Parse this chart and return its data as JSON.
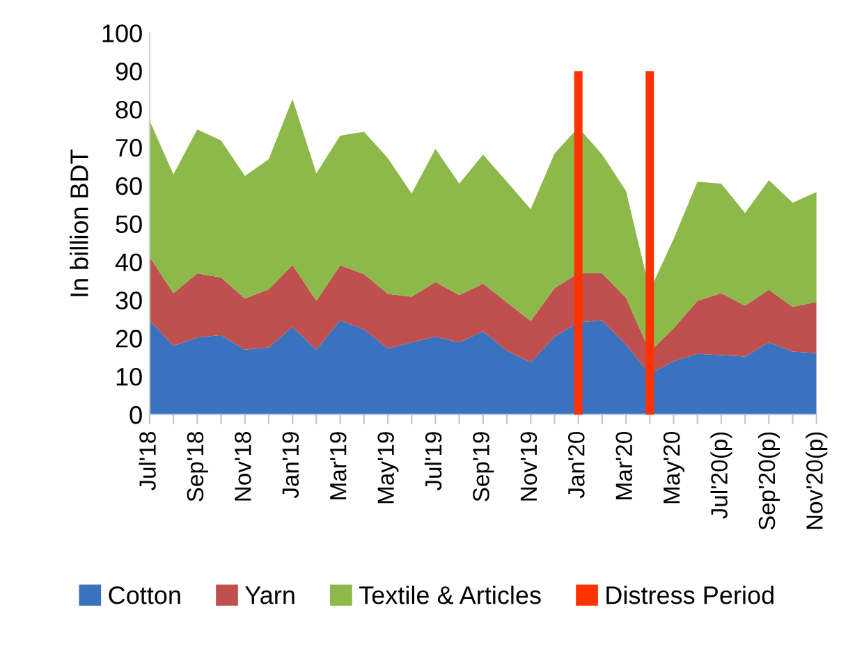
{
  "chart_data": [
    {
      "type": "area",
      "stacked": true,
      "ylabel": "In billion BDT",
      "categories": [
        "Jul'18",
        null,
        "Sep'18",
        null,
        "Nov'18",
        null,
        "Jan'19",
        null,
        "Mar'19",
        null,
        "May'19",
        null,
        "Jul'19",
        null,
        "Sep'19",
        null,
        "Nov'19",
        null,
        "Jan'20",
        null,
        "Mar'20",
        null,
        "May'20",
        null,
        "Jul'20(p)",
        null,
        "Sep'20(p)",
        null,
        "Nov'20(p)"
      ],
      "series": [
        {
          "name": "Cotton",
          "color": "#3a72bf",
          "values": [
            24.7,
            18.0,
            20.2,
            20.8,
            17.0,
            17.6,
            23.0,
            17.0,
            24.7,
            22.3,
            17.3,
            18.9,
            20.4,
            18.9,
            21.8,
            16.7,
            13.7,
            20.4,
            24.1,
            24.7,
            18.3,
            10.6,
            14.0,
            15.9,
            15.6,
            15.2,
            18.9,
            16.5,
            16.1
          ]
        },
        {
          "name": "Yarn",
          "color": "#c0504d",
          "values": [
            16.6,
            13.8,
            16.8,
            15.1,
            13.4,
            15.2,
            16.2,
            12.8,
            14.4,
            14.5,
            14.3,
            12.0,
            14.3,
            12.4,
            12.5,
            12.7,
            10.8,
            12.7,
            12.9,
            12.3,
            12.3,
            5.9,
            8.6,
            13.9,
            16.2,
            13.3,
            13.8,
            11.7,
            13.4
          ]
        },
        {
          "name": "Textile & Articles",
          "color": "#8db84a",
          "values": [
            35.7,
            31.1,
            37.7,
            35.9,
            32.1,
            34.1,
            43.5,
            33.4,
            34.0,
            37.3,
            35.6,
            27.0,
            34.9,
            29.2,
            33.8,
            31.6,
            29.3,
            35.3,
            38.2,
            31.1,
            28.0,
            16.0,
            23.4,
            31.2,
            28.7,
            24.3,
            28.7,
            27.3,
            28.8
          ]
        }
      ],
      "ylim": [
        0,
        100
      ],
      "yticks": [
        0,
        10,
        20,
        30,
        40,
        50,
        60,
        70,
        80,
        90,
        100
      ],
      "grid": false,
      "legend": "bottom"
    },
    {
      "type": "bar",
      "tick_labels": false,
      "categories": [
        null,
        null,
        null,
        null,
        null,
        null,
        null,
        null,
        null,
        null,
        null,
        null,
        null,
        null,
        null,
        null,
        null,
        null,
        null,
        null,
        null,
        null,
        null,
        null,
        null,
        null,
        null,
        null,
        null
      ],
      "series": [
        {
          "name": "Distress Period",
          "color": "#ff3300",
          "values": [
            null,
            null,
            null,
            null,
            null,
            null,
            null,
            null,
            null,
            null,
            null,
            null,
            null,
            null,
            null,
            null,
            null,
            null,
            90,
            null,
            null,
            90,
            null,
            null,
            null,
            null,
            null,
            null,
            null
          ]
        }
      ],
      "ylim": [
        0,
        100
      ],
      "grid": false,
      "legend": "bottom"
    }
  ]
}
